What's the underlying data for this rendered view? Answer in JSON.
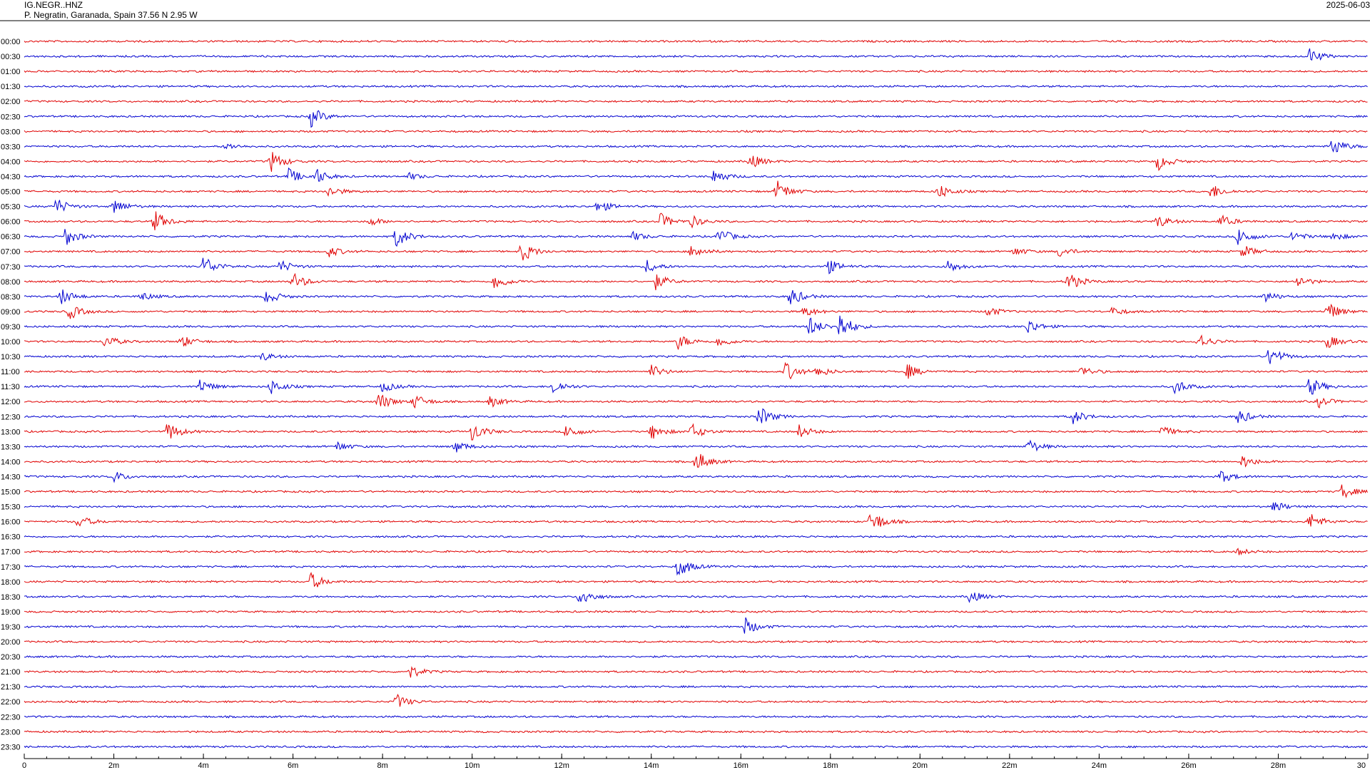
{
  "header": {
    "station": "IG.NEGR..HNZ",
    "location": "P. Negratin, Garanada, Spain  37.56 N 2.95 W",
    "date": "2025-06-03"
  },
  "colors": {
    "even": "#e00000",
    "odd": "#0000d0",
    "frame": "#000000"
  },
  "chart_data": {
    "type": "line",
    "title": "",
    "xlabel": "",
    "ylabel": "",
    "xlim": [
      0,
      30
    ],
    "x_unit": "minutes",
    "x_ticks": [
      {
        "v": 0,
        "label": "0"
      },
      {
        "v": 2,
        "label": "2m"
      },
      {
        "v": 4,
        "label": "4m"
      },
      {
        "v": 6,
        "label": "6m"
      },
      {
        "v": 8,
        "label": "8m"
      },
      {
        "v": 10,
        "label": "10m"
      },
      {
        "v": 12,
        "label": "12m"
      },
      {
        "v": 14,
        "label": "14m"
      },
      {
        "v": 16,
        "label": "16m"
      },
      {
        "v": 18,
        "label": "18m"
      },
      {
        "v": 20,
        "label": "20m"
      },
      {
        "v": 22,
        "label": "22m"
      },
      {
        "v": 24,
        "label": "24m"
      },
      {
        "v": 26,
        "label": "26m"
      },
      {
        "v": 28,
        "label": "28m"
      },
      {
        "v": 30,
        "label": "30"
      }
    ],
    "x_minor_step": 0.5,
    "grid": false,
    "rows": [
      {
        "label": "00:00",
        "events": []
      },
      {
        "label": "00:30",
        "events": [
          {
            "t": 28.7,
            "a": 0.7
          }
        ]
      },
      {
        "label": "01:00",
        "events": []
      },
      {
        "label": "01:30",
        "events": []
      },
      {
        "label": "02:00",
        "events": []
      },
      {
        "label": "02:30",
        "events": [
          {
            "t": 6.4,
            "a": 0.9
          }
        ]
      },
      {
        "label": "03:00",
        "events": []
      },
      {
        "label": "03:30",
        "events": [
          {
            "t": 4.5,
            "a": 0.3
          },
          {
            "t": 29.2,
            "a": 0.9
          }
        ]
      },
      {
        "label": "04:00",
        "events": [
          {
            "t": 5.5,
            "a": 1.0
          },
          {
            "t": 16.2,
            "a": 0.7
          },
          {
            "t": 25.3,
            "a": 0.8
          }
        ]
      },
      {
        "label": "04:30",
        "events": [
          {
            "t": 5.9,
            "a": 0.7
          },
          {
            "t": 6.5,
            "a": 0.7
          },
          {
            "t": 8.6,
            "a": 0.3
          },
          {
            "t": 15.4,
            "a": 0.7
          }
        ]
      },
      {
        "label": "05:00",
        "events": [
          {
            "t": 6.8,
            "a": 0.5
          },
          {
            "t": 16.8,
            "a": 1.0
          },
          {
            "t": 20.4,
            "a": 0.7
          },
          {
            "t": 26.5,
            "a": 0.7
          }
        ]
      },
      {
        "label": "05:30",
        "events": [
          {
            "t": 0.7,
            "a": 0.8
          },
          {
            "t": 2.0,
            "a": 0.7
          },
          {
            "t": 12.8,
            "a": 0.6
          }
        ]
      },
      {
        "label": "06:00",
        "events": [
          {
            "t": 2.9,
            "a": 1.0
          },
          {
            "t": 7.7,
            "a": 0.4
          },
          {
            "t": 14.2,
            "a": 0.7
          },
          {
            "t": 14.9,
            "a": 0.5
          },
          {
            "t": 25.3,
            "a": 0.6
          },
          {
            "t": 26.7,
            "a": 0.6
          }
        ]
      },
      {
        "label": "06:30",
        "events": [
          {
            "t": 0.9,
            "a": 0.9
          },
          {
            "t": 8.3,
            "a": 1.0
          },
          {
            "t": 13.6,
            "a": 0.4
          },
          {
            "t": 15.5,
            "a": 0.8
          },
          {
            "t": 27.1,
            "a": 0.9
          },
          {
            "t": 28.3,
            "a": 0.5
          },
          {
            "t": 29.2,
            "a": 0.4
          }
        ]
      },
      {
        "label": "07:00",
        "events": [
          {
            "t": 6.8,
            "a": 0.5
          },
          {
            "t": 11.1,
            "a": 1.0
          },
          {
            "t": 14.9,
            "a": 0.7
          },
          {
            "t": 22.1,
            "a": 0.4
          },
          {
            "t": 23.1,
            "a": 0.5
          },
          {
            "t": 27.2,
            "a": 0.6
          }
        ]
      },
      {
        "label": "07:30",
        "events": [
          {
            "t": 4.0,
            "a": 1.0
          },
          {
            "t": 5.7,
            "a": 0.6
          },
          {
            "t": 13.9,
            "a": 0.6
          },
          {
            "t": 17.9,
            "a": 0.8
          },
          {
            "t": 20.6,
            "a": 0.6
          }
        ]
      },
      {
        "label": "08:00",
        "events": [
          {
            "t": 6.0,
            "a": 0.8
          },
          {
            "t": 10.5,
            "a": 0.8
          },
          {
            "t": 14.1,
            "a": 0.7
          },
          {
            "t": 23.3,
            "a": 0.9
          },
          {
            "t": 28.4,
            "a": 0.6
          }
        ]
      },
      {
        "label": "08:30",
        "events": [
          {
            "t": 0.8,
            "a": 0.8
          },
          {
            "t": 2.6,
            "a": 0.4
          },
          {
            "t": 5.4,
            "a": 0.7
          },
          {
            "t": 17.1,
            "a": 0.9
          },
          {
            "t": 27.7,
            "a": 0.5
          }
        ]
      },
      {
        "label": "09:00",
        "events": [
          {
            "t": 1.0,
            "a": 0.7
          },
          {
            "t": 17.4,
            "a": 0.5
          },
          {
            "t": 21.5,
            "a": 0.5
          },
          {
            "t": 24.3,
            "a": 0.4
          },
          {
            "t": 29.1,
            "a": 0.9
          }
        ]
      },
      {
        "label": "09:30",
        "events": [
          {
            "t": 17.5,
            "a": 1.0
          },
          {
            "t": 18.2,
            "a": 1.3
          },
          {
            "t": 22.4,
            "a": 0.7
          }
        ]
      },
      {
        "label": "10:00",
        "events": [
          {
            "t": 1.8,
            "a": 0.6
          },
          {
            "t": 3.5,
            "a": 0.6
          },
          {
            "t": 14.6,
            "a": 0.7
          },
          {
            "t": 15.5,
            "a": 0.5
          },
          {
            "t": 26.2,
            "a": 0.8
          },
          {
            "t": 29.1,
            "a": 0.6
          }
        ]
      },
      {
        "label": "10:30",
        "events": [
          {
            "t": 5.3,
            "a": 0.4
          },
          {
            "t": 27.8,
            "a": 1.0
          }
        ]
      },
      {
        "label": "11:00",
        "events": [
          {
            "t": 14.0,
            "a": 0.6
          },
          {
            "t": 17.0,
            "a": 0.9
          },
          {
            "t": 17.7,
            "a": 0.5
          },
          {
            "t": 19.7,
            "a": 0.7
          },
          {
            "t": 23.6,
            "a": 0.5
          }
        ]
      },
      {
        "label": "11:30",
        "events": [
          {
            "t": 3.9,
            "a": 0.7
          },
          {
            "t": 5.5,
            "a": 0.7
          },
          {
            "t": 8.0,
            "a": 0.5
          },
          {
            "t": 11.8,
            "a": 0.7
          },
          {
            "t": 25.7,
            "a": 0.7
          },
          {
            "t": 28.7,
            "a": 0.9
          }
        ]
      },
      {
        "label": "12:00",
        "events": [
          {
            "t": 7.9,
            "a": 0.9
          },
          {
            "t": 8.7,
            "a": 0.7
          },
          {
            "t": 10.4,
            "a": 0.5
          },
          {
            "t": 28.9,
            "a": 0.5
          }
        ]
      },
      {
        "label": "12:30",
        "events": [
          {
            "t": 16.4,
            "a": 1.0
          },
          {
            "t": 23.4,
            "a": 0.7
          },
          {
            "t": 27.1,
            "a": 0.7
          }
        ]
      },
      {
        "label": "13:00",
        "events": [
          {
            "t": 3.2,
            "a": 0.9
          },
          {
            "t": 10.0,
            "a": 0.9
          },
          {
            "t": 12.1,
            "a": 0.7
          },
          {
            "t": 14.0,
            "a": 0.7
          },
          {
            "t": 14.9,
            "a": 0.7
          },
          {
            "t": 17.3,
            "a": 0.6
          },
          {
            "t": 25.4,
            "a": 0.5
          }
        ]
      },
      {
        "label": "13:30",
        "events": [
          {
            "t": 7.0,
            "a": 0.4
          },
          {
            "t": 9.6,
            "a": 0.6
          },
          {
            "t": 22.4,
            "a": 0.7
          }
        ]
      },
      {
        "label": "14:00",
        "events": [
          {
            "t": 15.0,
            "a": 1.0
          },
          {
            "t": 27.2,
            "a": 0.6
          }
        ]
      },
      {
        "label": "14:30",
        "events": [
          {
            "t": 2.0,
            "a": 0.5
          },
          {
            "t": 26.7,
            "a": 0.6
          }
        ]
      },
      {
        "label": "15:00",
        "events": [
          {
            "t": 29.4,
            "a": 0.7
          }
        ]
      },
      {
        "label": "15:30",
        "events": [
          {
            "t": 27.9,
            "a": 0.5
          }
        ]
      },
      {
        "label": "16:00",
        "events": [
          {
            "t": 1.2,
            "a": 0.6
          },
          {
            "t": 18.9,
            "a": 1.2
          },
          {
            "t": 28.7,
            "a": 0.8
          }
        ]
      },
      {
        "label": "16:30",
        "events": []
      },
      {
        "label": "17:00",
        "events": [
          {
            "t": 27.1,
            "a": 0.3
          }
        ]
      },
      {
        "label": "17:30",
        "events": [
          {
            "t": 14.6,
            "a": 1.0
          }
        ]
      },
      {
        "label": "18:00",
        "events": [
          {
            "t": 6.4,
            "a": 0.8
          }
        ]
      },
      {
        "label": "18:30",
        "events": [
          {
            "t": 12.4,
            "a": 0.9
          },
          {
            "t": 21.1,
            "a": 0.6
          }
        ]
      },
      {
        "label": "19:00",
        "events": []
      },
      {
        "label": "19:30",
        "events": [
          {
            "t": 16.1,
            "a": 0.8
          }
        ]
      },
      {
        "label": "20:00",
        "events": []
      },
      {
        "label": "20:30",
        "events": []
      },
      {
        "label": "21:00",
        "events": [
          {
            "t": 8.6,
            "a": 0.6
          }
        ]
      },
      {
        "label": "21:30",
        "events": []
      },
      {
        "label": "22:00",
        "events": [
          {
            "t": 8.3,
            "a": 0.7
          }
        ]
      },
      {
        "label": "22:30",
        "events": []
      },
      {
        "label": "23:00",
        "events": []
      },
      {
        "label": "23:30",
        "events": []
      }
    ]
  }
}
